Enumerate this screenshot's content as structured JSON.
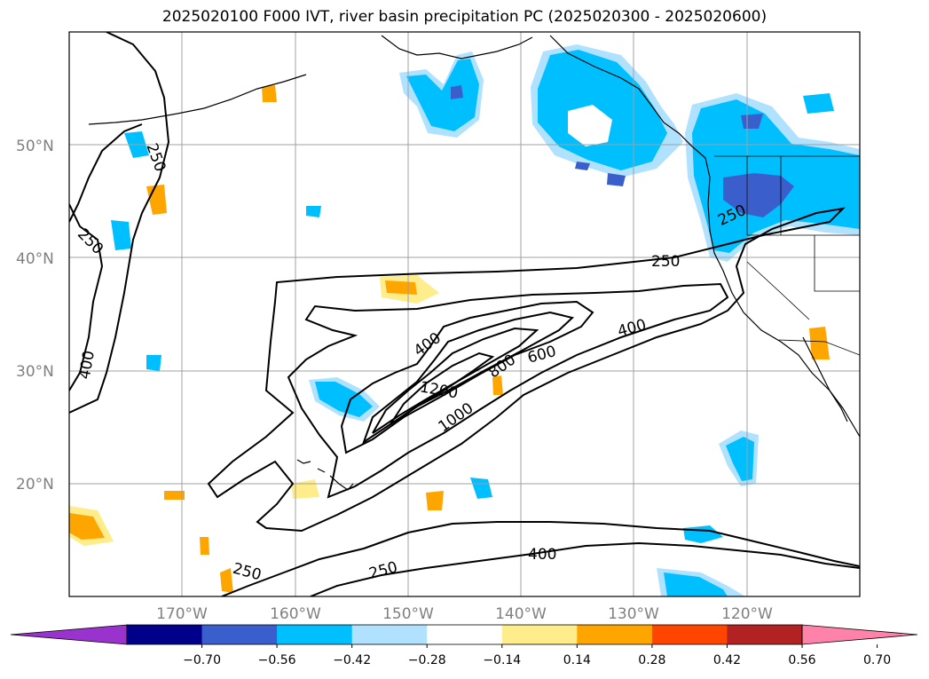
{
  "title": "2025020100 F000 IVT, river basin precipitation PC (2025020300 - 2025020600)",
  "map": {
    "lon_range": [
      -180,
      -110
    ],
    "lat_range": [
      10,
      60
    ],
    "lat_labels": [
      "20°N",
      "30°N",
      "40°N",
      "50°N"
    ],
    "lon_labels": [
      "170°W",
      "160°W",
      "150°W",
      "140°W",
      "130°W",
      "120°W"
    ],
    "grid": true
  },
  "ivt_contour_labels": [
    "250",
    "250",
    "250",
    "250",
    "250",
    "250",
    "400",
    "400",
    "400",
    "400",
    "600",
    "800",
    "1000",
    "1200"
  ],
  "colorbar": {
    "ticks": [
      "−0.70",
      "−0.56",
      "−0.42",
      "−0.28",
      "−0.14",
      "0.14",
      "0.28",
      "0.42",
      "0.56",
      "0.70"
    ],
    "colors": [
      "#9a32cd",
      "#00008b",
      "#3a5fcd",
      "#00bfff",
      "#b0e2ff",
      "#ffffff",
      "#ffec8b",
      "#ffa500",
      "#ff4500",
      "#b22222",
      "#ff82ab"
    ],
    "extend": "both"
  }
}
